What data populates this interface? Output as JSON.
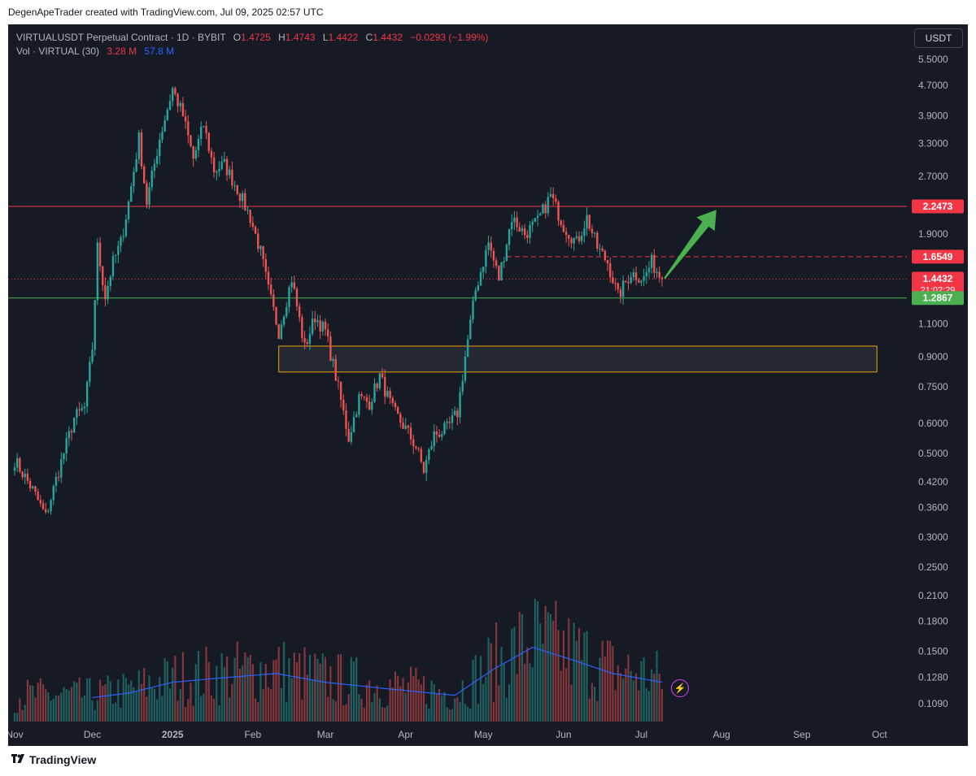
{
  "header": {
    "attribution": "DegenApeTrader created with TradingView.com, Jul 09, 2025 02:57 UTC"
  },
  "legend": {
    "symbol": "VIRTUALUSDT Perpetual Contract · 1D · BYBIT",
    "open_label": "O",
    "open": "1.4725",
    "high_label": "H",
    "high": "1.4743",
    "low_label": "L",
    "low": "1.4422",
    "close_label": "C",
    "close": "1.4432",
    "change": "−0.0293 (−1.99%)",
    "vol_label": "Vol · VIRTUAL (30)",
    "vol_value": "3.28 M",
    "vol_ma": "57.8 M"
  },
  "unit_button": "USDT",
  "footer": {
    "brand": "TradingView"
  },
  "colors": {
    "background": "#161a25",
    "up": "#26a69a",
    "down": "#ef5350",
    "resistance": "#f23645",
    "support": "#4caf50",
    "zone_border": "#f0a00c",
    "arrow": "#4caf50",
    "volume_ma": "#2962ff",
    "axis_text": "#b2b5be"
  },
  "icons": {
    "logo": "tradingview-logo-icon",
    "alert": "lightning-bolt-icon"
  },
  "chart_data": {
    "type": "candlestick",
    "x_axis": {
      "tick_labels": [
        "Nov",
        "Dec",
        "2025",
        "Feb",
        "Mar",
        "Apr",
        "May",
        "Jun",
        "Jul",
        "Aug",
        "Sep",
        "Oct"
      ],
      "range": [
        "2024-11-01",
        "2025-10-10"
      ]
    },
    "y_axis": {
      "scale": "log",
      "tick_labels": [
        "5.5000",
        "4.7000",
        "3.9000",
        "3.3000",
        "2.7000",
        "1.9000",
        "1.1000",
        "0.9000",
        "0.7500",
        "0.6000",
        "0.5000",
        "0.4200",
        "0.3600",
        "0.3000",
        "0.2500",
        "0.2100",
        "0.1800",
        "0.1500",
        "0.1280",
        "0.1090"
      ],
      "range": [
        0.109,
        5.9
      ]
    },
    "price_markers": [
      {
        "value": 2.2473,
        "label": "2.2473",
        "color": "#f23645",
        "style": "solid",
        "name": "resistance"
      },
      {
        "value": 1.6549,
        "label": "1.6549",
        "color": "#f23645",
        "style": "dashed",
        "name": "level"
      },
      {
        "value": 1.4432,
        "label": "1.4432",
        "color": "#f23645",
        "style": "dotted",
        "name": "last-price",
        "countdown": "21:02:29"
      },
      {
        "value": 1.2867,
        "label": "1.2867",
        "color": "#4caf50",
        "style": "solid",
        "name": "support"
      }
    ],
    "zone": {
      "from_date": "2025-02-11",
      "to_date": "2025-09-30",
      "low": 0.82,
      "high": 0.96
    },
    "arrow": {
      "from_date": "2025-07-10",
      "from_price": 1.45,
      "to_date": "2025-07-30",
      "to_price": 2.2
    },
    "anchors": [
      [
        "2024-11-01",
        0.48
      ],
      [
        "2024-11-08",
        0.4
      ],
      [
        "2024-11-13",
        0.34
      ],
      [
        "2024-11-18",
        0.45
      ],
      [
        "2024-11-24",
        0.62
      ],
      [
        "2024-11-28",
        0.66
      ],
      [
        "2024-12-01",
        0.95
      ],
      [
        "2024-12-03",
        1.75
      ],
      [
        "2024-12-06",
        1.3
      ],
      [
        "2024-12-09",
        1.6
      ],
      [
        "2024-12-12",
        1.8
      ],
      [
        "2024-12-15",
        2.3
      ],
      [
        "2024-12-19",
        3.4
      ],
      [
        "2024-12-22",
        2.3
      ],
      [
        "2024-12-27",
        3.4
      ],
      [
        "2025-01-01",
        4.6
      ],
      [
        "2025-01-05",
        3.9
      ],
      [
        "2025-01-09",
        3.0
      ],
      [
        "2025-01-13",
        3.7
      ],
      [
        "2025-01-17",
        2.8
      ],
      [
        "2025-01-21",
        2.9
      ],
      [
        "2025-01-26",
        2.5
      ],
      [
        "2025-01-31",
        2.1
      ],
      [
        "2025-02-04",
        1.7
      ],
      [
        "2025-02-07",
        1.35
      ],
      [
        "2025-02-11",
        1.05
      ],
      [
        "2025-02-16",
        1.45
      ],
      [
        "2025-02-21",
        0.95
      ],
      [
        "2025-02-25",
        1.15
      ],
      [
        "2025-03-01",
        1.05
      ],
      [
        "2025-03-05",
        0.8
      ],
      [
        "2025-03-10",
        0.55
      ],
      [
        "2025-03-14",
        0.7
      ],
      [
        "2025-03-18",
        0.68
      ],
      [
        "2025-03-22",
        0.8
      ],
      [
        "2025-03-27",
        0.65
      ],
      [
        "2025-04-01",
        0.58
      ],
      [
        "2025-04-05",
        0.52
      ],
      [
        "2025-04-08",
        0.45
      ],
      [
        "2025-04-12",
        0.56
      ],
      [
        "2025-04-17",
        0.58
      ],
      [
        "2025-04-21",
        0.64
      ],
      [
        "2025-04-24",
        0.9
      ],
      [
        "2025-04-28",
        1.35
      ],
      [
        "2025-05-03",
        1.8
      ],
      [
        "2025-05-07",
        1.45
      ],
      [
        "2025-05-12",
        2.1
      ],
      [
        "2025-05-17",
        1.9
      ],
      [
        "2025-05-22",
        2.05
      ],
      [
        "2025-05-27",
        2.4
      ],
      [
        "2025-06-01",
        2.0
      ],
      [
        "2025-06-06",
        1.8
      ],
      [
        "2025-06-10",
        2.1
      ],
      [
        "2025-06-14",
        1.75
      ],
      [
        "2025-06-18",
        1.6
      ],
      [
        "2025-06-22",
        1.3
      ],
      [
        "2025-06-27",
        1.5
      ],
      [
        "2025-07-02",
        1.45
      ],
      [
        "2025-07-05",
        1.6
      ],
      [
        "2025-07-09",
        1.4432
      ]
    ],
    "volume_ma_anchors": [
      [
        "2024-12-01",
        55
      ],
      [
        "2024-12-15",
        65
      ],
      [
        "2025-01-01",
        90
      ],
      [
        "2025-01-20",
        100
      ],
      [
        "2025-02-10",
        110
      ],
      [
        "2025-03-01",
        90
      ],
      [
        "2025-03-25",
        75
      ],
      [
        "2025-04-20",
        60
      ],
      [
        "2025-05-05",
        120
      ],
      [
        "2025-05-20",
        170
      ],
      [
        "2025-06-05",
        140
      ],
      [
        "2025-06-20",
        110
      ],
      [
        "2025-07-09",
        90
      ]
    ],
    "volume_axis_max": 400,
    "current_volume_label": "3.28 M",
    "volume_ma_label": "57.8 M"
  }
}
